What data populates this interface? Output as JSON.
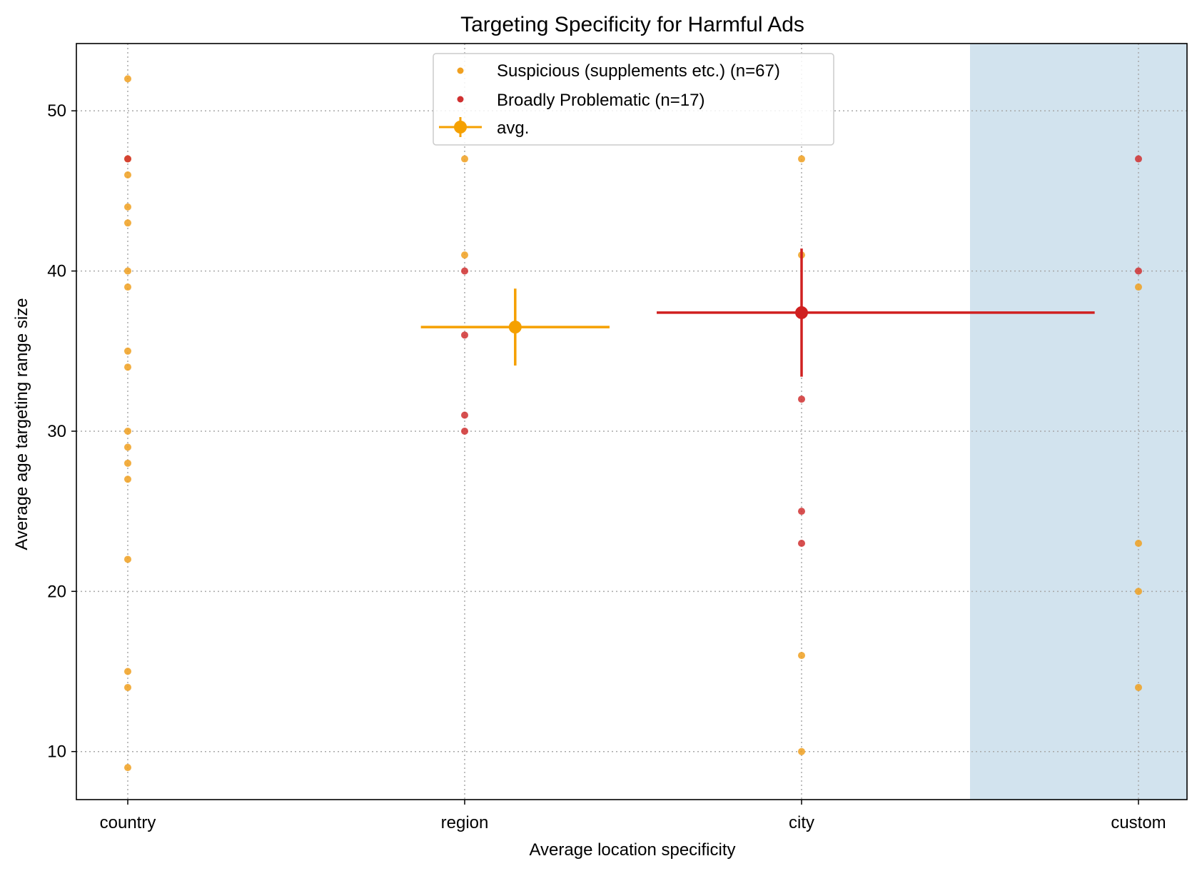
{
  "chart_data": {
    "type": "scatter",
    "title": "Targeting Specificity for Harmful Ads",
    "xlabel": "Average location specificity",
    "ylabel": "Average age targeting range size",
    "categories": [
      "country",
      "region",
      "city",
      "custom"
    ],
    "ylim": [
      7,
      54.2
    ],
    "yticks": [
      10,
      20,
      30,
      40,
      50
    ],
    "grid": true,
    "legend_position": "top-center",
    "highlight_region": {
      "from_category_index": 2.5,
      "to_category_index": 3.15,
      "color": "#d2e3ee"
    },
    "series": [
      {
        "name": "Suspicious (supplements etc.) (n=67)",
        "color": "#f0a020",
        "points": [
          {
            "x": "country",
            "y": 52
          },
          {
            "x": "country",
            "y": 47
          },
          {
            "x": "country",
            "y": 46
          },
          {
            "x": "country",
            "y": 44
          },
          {
            "x": "country",
            "y": 43
          },
          {
            "x": "country",
            "y": 40
          },
          {
            "x": "country",
            "y": 39
          },
          {
            "x": "country",
            "y": 35
          },
          {
            "x": "country",
            "y": 34
          },
          {
            "x": "country",
            "y": 30
          },
          {
            "x": "country",
            "y": 29
          },
          {
            "x": "country",
            "y": 28
          },
          {
            "x": "country",
            "y": 27
          },
          {
            "x": "country",
            "y": 22
          },
          {
            "x": "country",
            "y": 15
          },
          {
            "x": "country",
            "y": 14
          },
          {
            "x": "country",
            "y": 9
          },
          {
            "x": "region",
            "y": 47
          },
          {
            "x": "region",
            "y": 41
          },
          {
            "x": "city",
            "y": 47
          },
          {
            "x": "city",
            "y": 41
          },
          {
            "x": "city",
            "y": 16
          },
          {
            "x": "city",
            "y": 10
          },
          {
            "x": "custom",
            "y": 39
          },
          {
            "x": "custom",
            "y": 23
          },
          {
            "x": "custom",
            "y": 20
          },
          {
            "x": "custom",
            "y": 14
          }
        ]
      },
      {
        "name": "Broadly Problematic (n=17)",
        "color": "#d03030",
        "points": [
          {
            "x": "country",
            "y": 47
          },
          {
            "x": "region",
            "y": 40
          },
          {
            "x": "region",
            "y": 36
          },
          {
            "x": "region",
            "y": 31
          },
          {
            "x": "region",
            "y": 30
          },
          {
            "x": "city",
            "y": 32
          },
          {
            "x": "city",
            "y": 25
          },
          {
            "x": "city",
            "y": 23
          },
          {
            "x": "custom",
            "y": 47
          },
          {
            "x": "custom",
            "y": 40
          }
        ]
      }
    ],
    "averages": [
      {
        "label": "avg.",
        "color": "#f5a000",
        "x": 1.15,
        "y": 36.5,
        "xerr": [
          0.87,
          1.43
        ],
        "yerr": [
          34.1,
          38.9
        ]
      },
      {
        "color": "#d02020",
        "x": 2.0,
        "y": 37.4,
        "xerr": [
          1.57,
          2.87
        ],
        "yerr": [
          33.4,
          41.4
        ]
      }
    ]
  }
}
